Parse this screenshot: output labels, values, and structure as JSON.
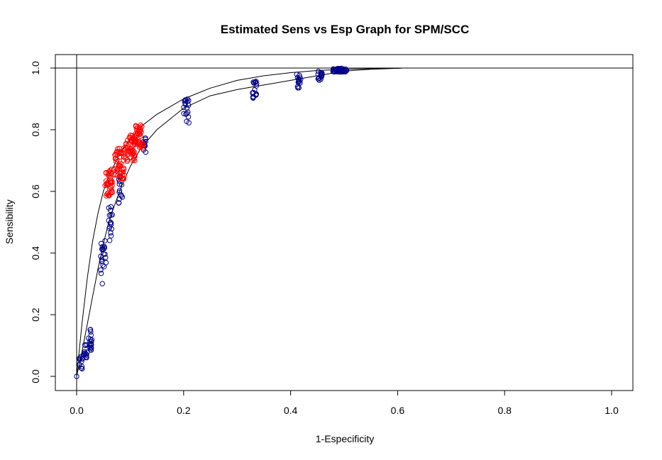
{
  "chart_data": {
    "type": "scatter",
    "title": "Estimated Sens vs Esp Graph for SPM/SCC",
    "xlabel": "1-Especificity",
    "ylabel": "Sensibility",
    "xlim": [
      0.0,
      1.0
    ],
    "ylim": [
      0.0,
      1.0
    ],
    "xticks": [
      "0.0",
      "0.2",
      "0.4",
      "0.6",
      "0.8",
      "1.0"
    ],
    "yticks": [
      "0.0",
      "0.2",
      "0.4",
      "0.6",
      "0.8",
      "1.0"
    ],
    "grid": false,
    "legend": "none",
    "reference_lines": {
      "hline_y": 1.0,
      "vline_x": 0.0
    },
    "colors": {
      "blue_series": "#00008b",
      "red_series": "#ff0000",
      "lines": "#000000"
    },
    "curves": [
      {
        "x": [
          0.0,
          0.01,
          0.02,
          0.03,
          0.04,
          0.05,
          0.06,
          0.08,
          0.1,
          0.12,
          0.15,
          0.2,
          0.25,
          0.3,
          0.35,
          0.4,
          0.45,
          0.5,
          0.55,
          0.6,
          0.61
        ],
        "y": [
          0.0,
          0.17,
          0.32,
          0.44,
          0.53,
          0.6,
          0.65,
          0.72,
          0.77,
          0.81,
          0.85,
          0.9,
          0.935,
          0.96,
          0.975,
          0.985,
          0.992,
          0.996,
          0.998,
          0.999,
          1.0
        ]
      },
      {
        "x": [
          0.0,
          0.01,
          0.02,
          0.03,
          0.04,
          0.05,
          0.06,
          0.08,
          0.1,
          0.12,
          0.15,
          0.2,
          0.25,
          0.3,
          0.35,
          0.4,
          0.45,
          0.5,
          0.55,
          0.6,
          0.61
        ],
        "y": [
          0.0,
          0.08,
          0.17,
          0.26,
          0.35,
          0.43,
          0.5,
          0.6,
          0.68,
          0.74,
          0.8,
          0.87,
          0.91,
          0.93,
          0.945,
          0.96,
          0.975,
          0.99,
          0.996,
          0.999,
          1.0
        ]
      }
    ],
    "series": [
      {
        "color": "#00008b",
        "clusters": [
          {
            "x": 0.0,
            "y": 0.0,
            "n": 1,
            "xspread": 0.0,
            "yspread": 0.0
          },
          {
            "x": 0.008,
            "y": 0.04,
            "n": 10,
            "xspread": 0.004,
            "yspread": 0.025
          },
          {
            "x": 0.016,
            "y": 0.08,
            "n": 12,
            "xspread": 0.004,
            "yspread": 0.03
          },
          {
            "x": 0.026,
            "y": 0.12,
            "n": 18,
            "xspread": 0.004,
            "yspread": 0.035
          },
          {
            "x": 0.05,
            "y": 0.37,
            "n": 22,
            "xspread": 0.005,
            "yspread": 0.07
          },
          {
            "x": 0.063,
            "y": 0.5,
            "n": 16,
            "xspread": 0.004,
            "yspread": 0.06
          },
          {
            "x": 0.082,
            "y": 0.6,
            "n": 14,
            "xspread": 0.004,
            "yspread": 0.05
          },
          {
            "x": 0.127,
            "y": 0.76,
            "n": 10,
            "xspread": 0.004,
            "yspread": 0.035
          },
          {
            "x": 0.205,
            "y": 0.86,
            "n": 18,
            "xspread": 0.005,
            "yspread": 0.04
          },
          {
            "x": 0.333,
            "y": 0.93,
            "n": 16,
            "xspread": 0.005,
            "yspread": 0.03
          },
          {
            "x": 0.415,
            "y": 0.955,
            "n": 16,
            "xspread": 0.004,
            "yspread": 0.025
          },
          {
            "x": 0.455,
            "y": 0.975,
            "n": 16,
            "xspread": 0.004,
            "yspread": 0.015
          },
          {
            "x": 0.492,
            "y": 0.993,
            "n": 40,
            "xspread": 0.013,
            "yspread": 0.006
          }
        ]
      },
      {
        "color": "#ff0000",
        "clusters": [
          {
            "x": 0.06,
            "y": 0.63,
            "n": 40,
            "xspread": 0.007,
            "yspread": 0.045
          },
          {
            "x": 0.08,
            "y": 0.69,
            "n": 50,
            "xspread": 0.01,
            "yspread": 0.05
          },
          {
            "x": 0.1,
            "y": 0.74,
            "n": 50,
            "xspread": 0.01,
            "yspread": 0.045
          },
          {
            "x": 0.118,
            "y": 0.78,
            "n": 40,
            "xspread": 0.008,
            "yspread": 0.04
          }
        ]
      }
    ]
  }
}
